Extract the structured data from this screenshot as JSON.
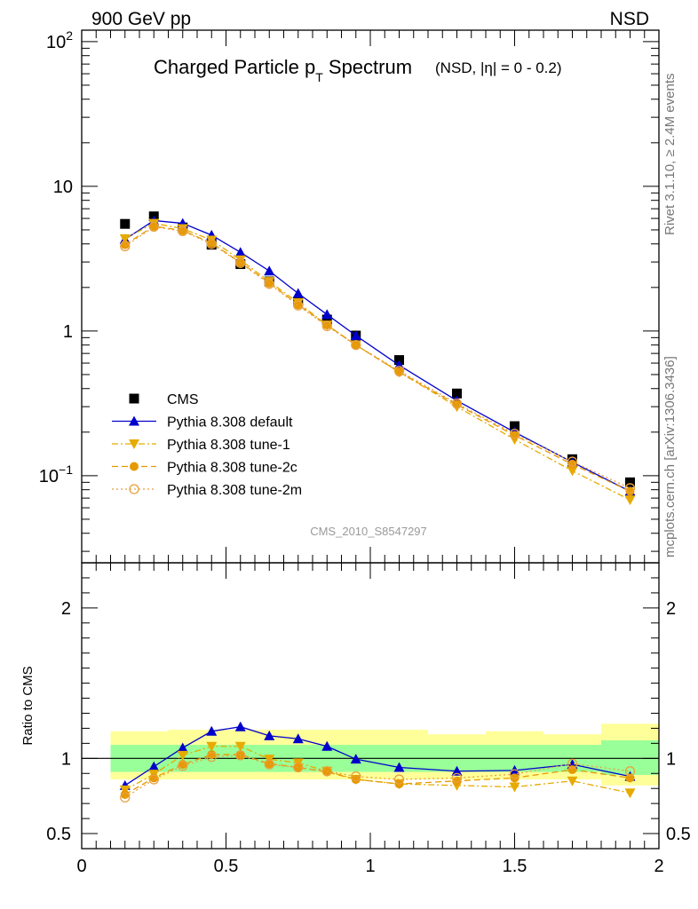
{
  "header": {
    "left": "900 GeV pp",
    "right": "NSD"
  },
  "side_text": {
    "top": "Rivet 3.1.10, ≥ 2.4M events",
    "bottom": "mcplots.cern.ch [arXiv:1306.3436]"
  },
  "chart_data": [
    {
      "type": "line",
      "title_main": "Charged Particle p",
      "title_sub": "T",
      "title_main2": " Spectrum",
      "title_extra": "(NSD, |η| =   0 - 0.2)",
      "ref_label": "CMS_2010_S8547297",
      "yscale": "log",
      "ylim": [
        0.025,
        120
      ],
      "xlim": [
        0,
        2
      ],
      "yticks": [
        {
          "label": "10",
          "exp": "2",
          "value": 100
        },
        {
          "label": "10",
          "exp": "",
          "value": 10
        },
        {
          "label": "1",
          "exp": "",
          "value": 1
        },
        {
          "label": "10",
          "exp": "−1",
          "value": 0.1
        }
      ],
      "legend_position": "bottom-left",
      "x": [
        0.15,
        0.25,
        0.35,
        0.45,
        0.55,
        0.65,
        0.75,
        0.85,
        0.95,
        1.1,
        1.3,
        1.5,
        1.7,
        1.9
      ],
      "series": [
        {
          "name": "CMS",
          "color": "#000000",
          "marker": "square",
          "line": "none",
          "values": [
            5.5,
            6.2,
            5.2,
            3.95,
            2.9,
            2.2,
            1.6,
            1.2,
            0.93,
            0.63,
            0.37,
            0.22,
            0.13,
            0.09
          ]
        },
        {
          "name": "Pythia 8.308 default",
          "color": "#0000cc",
          "marker": "triangle-up",
          "line": "solid",
          "values": [
            4.3,
            5.8,
            5.55,
            4.6,
            3.5,
            2.6,
            1.82,
            1.3,
            0.93,
            0.58,
            0.33,
            0.2,
            0.124,
            0.078
          ]
        },
        {
          "name": "Pythia 8.308 tune-1",
          "color": "#e6aa00",
          "marker": "triangle-down",
          "line": "dashdot",
          "values": [
            4.35,
            5.55,
            5.1,
            4.25,
            3.1,
            2.2,
            1.57,
            1.1,
            0.8,
            0.52,
            0.3,
            0.178,
            0.108,
            0.068
          ]
        },
        {
          "name": "Pythia 8.308 tune-2c",
          "color": "#e69900",
          "marker": "circle",
          "line": "dashed",
          "values": [
            3.95,
            5.3,
            4.95,
            4.05,
            2.98,
            2.15,
            1.52,
            1.1,
            0.8,
            0.52,
            0.31,
            0.19,
            0.12,
            0.078
          ]
        },
        {
          "name": "Pythia 8.308 tune-2m",
          "color": "#e8a040",
          "marker": "circle-open",
          "line": "dotted",
          "values": [
            3.85,
            5.25,
            4.9,
            4.0,
            2.95,
            2.12,
            1.5,
            1.08,
            0.8,
            0.53,
            0.315,
            0.195,
            0.125,
            0.082
          ]
        }
      ]
    },
    {
      "type": "line",
      "ylabel": "Ratio to CMS",
      "ylim": [
        0.4,
        2.3
      ],
      "xlim": [
        0,
        2
      ],
      "yticks": [
        0.5,
        1,
        2
      ],
      "xticks": [
        0,
        0.5,
        1,
        1.5,
        2
      ],
      "x_edges": [
        0.1,
        0.2,
        0.3,
        0.4,
        0.5,
        0.6,
        0.7,
        0.8,
        0.9,
        1.0,
        1.2,
        1.4,
        1.6,
        1.8,
        2.0
      ],
      "band_inner": [
        [
          0.91,
          1.09
        ],
        [
          0.91,
          1.09
        ],
        [
          0.91,
          1.09
        ],
        [
          0.91,
          1.09
        ],
        [
          0.91,
          1.09
        ],
        [
          0.91,
          1.09
        ],
        [
          0.91,
          1.09
        ],
        [
          0.91,
          1.09
        ],
        [
          0.91,
          1.09
        ],
        [
          0.91,
          1.09
        ],
        [
          0.91,
          1.09
        ],
        [
          0.91,
          1.09
        ],
        [
          0.91,
          1.09
        ],
        [
          0.89,
          1.12
        ]
      ],
      "band_outer": [
        [
          0.86,
          1.18
        ],
        [
          0.86,
          1.18
        ],
        [
          0.86,
          1.19
        ],
        [
          0.86,
          1.19
        ],
        [
          0.86,
          1.19
        ],
        [
          0.86,
          1.19
        ],
        [
          0.86,
          1.19
        ],
        [
          0.86,
          1.19
        ],
        [
          0.86,
          1.19
        ],
        [
          0.86,
          1.19
        ],
        [
          0.86,
          1.16
        ],
        [
          0.86,
          1.18
        ],
        [
          0.86,
          1.16
        ],
        [
          0.82,
          1.23
        ]
      ],
      "x": [
        0.15,
        0.25,
        0.35,
        0.45,
        0.55,
        0.65,
        0.75,
        0.85,
        0.95,
        1.1,
        1.3,
        1.5,
        1.7,
        1.9
      ],
      "series": [
        {
          "name": "Pythia 8.308 default",
          "color": "#0000cc",
          "marker": "triangle-up",
          "line": "solid",
          "values": [
            0.82,
            0.945,
            1.07,
            1.18,
            1.21,
            1.15,
            1.13,
            1.08,
            0.995,
            0.94,
            0.915,
            0.92,
            0.96,
            0.88
          ]
        },
        {
          "name": "Pythia 8.308 tune-1",
          "color": "#e6aa00",
          "marker": "triangle-down",
          "line": "dashdot",
          "values": [
            0.79,
            0.895,
            1.02,
            1.08,
            1.08,
            0.995,
            0.97,
            0.915,
            0.86,
            0.83,
            0.82,
            0.81,
            0.85,
            0.77
          ]
        },
        {
          "name": "Pythia 8.308 tune-2c",
          "color": "#e69900",
          "marker": "circle",
          "line": "dashed",
          "values": [
            0.76,
            0.87,
            0.96,
            1.025,
            1.025,
            0.965,
            0.94,
            0.91,
            0.86,
            0.83,
            0.85,
            0.87,
            0.925,
            0.87
          ]
        },
        {
          "name": "Pythia 8.308 tune-2m",
          "color": "#e8a040",
          "marker": "circle-open",
          "line": "dotted",
          "values": [
            0.74,
            0.86,
            0.95,
            1.01,
            1.02,
            0.96,
            0.94,
            0.915,
            0.88,
            0.86,
            0.87,
            0.895,
            0.965,
            0.915
          ]
        }
      ]
    }
  ]
}
